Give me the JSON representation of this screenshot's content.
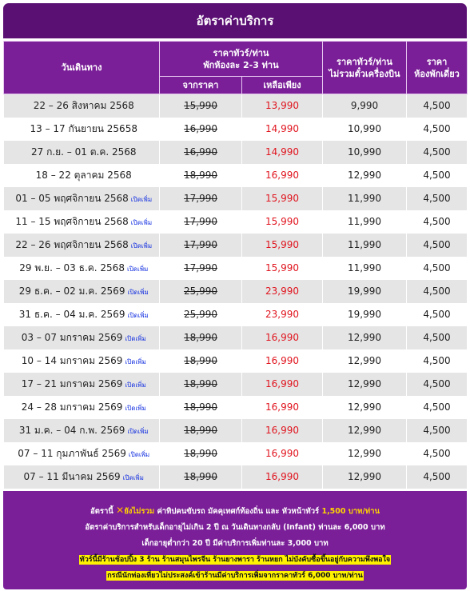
{
  "title": "อัตราค่าบริการ",
  "headers": {
    "route": "วันเดินทาง",
    "room_price_l1": "ราคาทัวร์/ท่าน",
    "room_price_l2": "พักห้องละ 2-3 ท่าน",
    "from_price": "จากราคา",
    "remaining": "เหลือเพียง",
    "no_flight_l1": "ราคาทัวร์/ท่าน",
    "no_flight_l2": "ไม่รวมตั๋วเครื่องบิน",
    "single_l1": "ราคา",
    "single_l2": "ห้องพักเดี่ยว"
  },
  "more_label": "เปิดเพิ่ม",
  "rows": [
    {
      "date": "22 – 26 สิงหาคม 2568",
      "more": "",
      "from": "15,990",
      "sale": "13,990",
      "no_flight": "9,990",
      "single": "4,500"
    },
    {
      "date": "13 – 17 กันยายน 25658",
      "more": "",
      "from": "16,990",
      "sale": "14,990",
      "no_flight": "10,990",
      "single": "4,500"
    },
    {
      "date": "27 ก.ย. – 01 ต.ค. 2568",
      "more": "",
      "from": "16,990",
      "sale": "14,990",
      "no_flight": "10,990",
      "single": "4,500"
    },
    {
      "date": "18 – 22 ตุลาคม 2568",
      "more": "",
      "from": "18,990",
      "sale": "16,990",
      "no_flight": "12,990",
      "single": "4,500"
    },
    {
      "date": "01 – 05 พฤศจิกายน 2568",
      "more": "เปิดเพิ่ม",
      "from": "17,990",
      "sale": "15,990",
      "no_flight": "11,990",
      "single": "4,500"
    },
    {
      "date": "11 – 15 พฤศจิกายน 2568",
      "more": "เปิดเพิ่ม",
      "from": "17,990",
      "sale": "15,990",
      "no_flight": "11,990",
      "single": "4,500"
    },
    {
      "date": "22 – 26 พฤศจิกายน 2568",
      "more": "เปิดเพิ่ม",
      "from": "17,990",
      "sale": "15,990",
      "no_flight": "11,990",
      "single": "4,500"
    },
    {
      "date": "29 พ.ย. – 03 ธ.ค. 2568",
      "more": "เปิดเพิ่ม",
      "from": "17,990",
      "sale": "15,990",
      "no_flight": "11,990",
      "single": "4,500"
    },
    {
      "date": "29 ธ.ค. – 02 ม.ค. 2569",
      "more": "เปิดเพิ่ม",
      "from": "25,990",
      "sale": "23,990",
      "no_flight": "19,990",
      "single": "4,500"
    },
    {
      "date": "31 ธ.ค. – 04 ม.ค. 2569",
      "more": "เปิดเพิ่ม",
      "from": "25,990",
      "sale": "23,990",
      "no_flight": "19,990",
      "single": "4,500"
    },
    {
      "date": "03 – 07 มกราคม 2569",
      "more": "เปิดเพิ่ม",
      "from": "18,990",
      "sale": "16,990",
      "no_flight": "12,990",
      "single": "4,500"
    },
    {
      "date": "10 – 14 มกราคม 2569",
      "more": "เปิดเพิ่ม",
      "from": "18,990",
      "sale": "16,990",
      "no_flight": "12,990",
      "single": "4,500"
    },
    {
      "date": "17 – 21 มกราคม 2569",
      "more": "เปิดเพิ่ม",
      "from": "18,990",
      "sale": "16,990",
      "no_flight": "12,990",
      "single": "4,500"
    },
    {
      "date": "24 – 28 มกราคม 2569",
      "more": "เปิดเพิ่ม",
      "from": "18,990",
      "sale": "16,990",
      "no_flight": "12,990",
      "single": "4,500"
    },
    {
      "date": "31 ม.ค. – 04 ก.พ. 2569",
      "more": "เปิดเพิ่ม",
      "from": "18,990",
      "sale": "16,990",
      "no_flight": "12,990",
      "single": "4,500"
    },
    {
      "date": "07 – 11 กุมภาพันธ์ 2569",
      "more": "เปิดเพิ่ม",
      "from": "18,990",
      "sale": "16,990",
      "no_flight": "12,990",
      "single": "4,500"
    },
    {
      "date": "07 – 11 มีนาคม 2569",
      "more": "เปิดเพิ่ม",
      "from": "18,990",
      "sale": "16,990",
      "no_flight": "12,990",
      "single": "4,500"
    }
  ],
  "footer": {
    "l1_a": "อัตรานี้",
    "l1_icon": "x-icon",
    "l1_b": "ยังไม่รวม",
    "l1_c": "ค่าทิปคนขับรถ มัคคุเทศก์ท้องถิ่น และ หัวหน้าทัวร์",
    "l1_d": "1,500 บาท/ท่าน",
    "l2": "อัตราค่าบริการสำหรับเด็กอายุไม่เกิน 2 ปี ณ วันเดินทางกลับ (Infant) ท่านละ 6,000 บาท",
    "l3": "เด็กอายุต่ำกว่า 20 ปี มีค่าบริการเพิ่มท่านละ 3,000 บาท",
    "l4": "ทัวร์นี้มีร้านช้อปปิ้ง 3 ร้าน ร้านสมุนไพรจีน ร้านยางพารา ร้านหยก ไม่บังคับซื้อขึ้นอยู่กับความพึงพอใจ",
    "l5": "กรณีนักท่องเที่ยวไม่ประสงค์เข้าร้านมีค่าบริการเพิ่มจากราคาทัวร์ 6,000 บาท/ท่าน",
    "accent_yellow": "#ffd400",
    "highlight": "#fff200"
  },
  "colors": {
    "title_bg": "#5a0f73",
    "header_bg": "#7a1f98",
    "sale_red": "#e0141e",
    "link_blue": "#1430e0",
    "row_gray": "#e5e5e5"
  }
}
